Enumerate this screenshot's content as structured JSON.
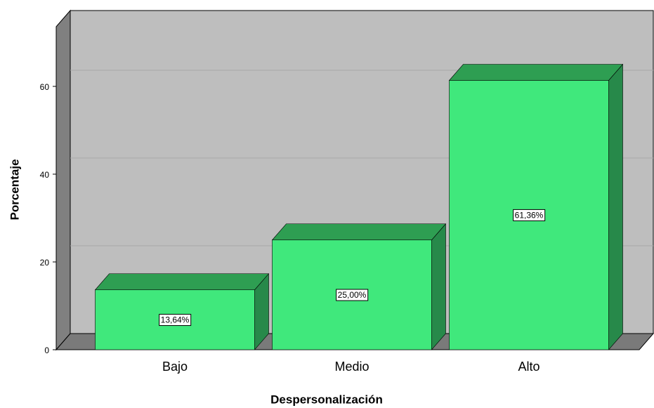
{
  "chart_data": {
    "type": "bar3d",
    "x_label": "Despersonalización",
    "y_label": "Porcentaje",
    "categories": [
      "Bajo",
      "Medio",
      "Alto"
    ],
    "values": [
      13.64,
      25.0,
      61.36
    ],
    "value_labels": [
      "13,64%",
      "25,00%",
      "61,36%"
    ],
    "color": "#40e87c",
    "ylim": [
      0,
      73.6
    ],
    "yticks": [
      0,
      20,
      40,
      60
    ],
    "grid": true
  }
}
